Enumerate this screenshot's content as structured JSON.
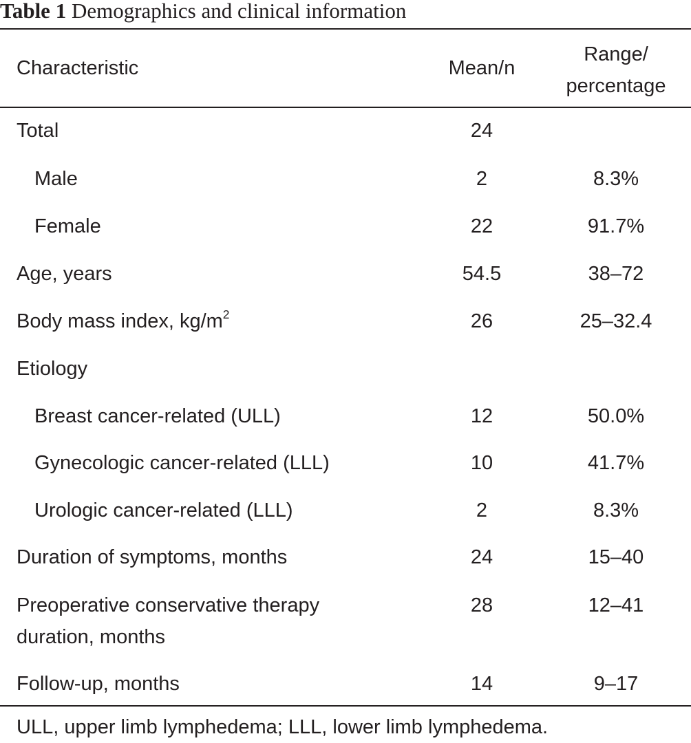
{
  "caption": {
    "label": "Table 1",
    "title": "Demographics and clinical information"
  },
  "headers": {
    "characteristic": "Characteristic",
    "mean": "Mean/n",
    "range_line1": "Range/",
    "range_line2": "percentage"
  },
  "rows": [
    {
      "label": "Total",
      "mean": "24",
      "range": ""
    },
    {
      "label": "Male",
      "mean": "2",
      "range": "8.3%"
    },
    {
      "label": "Female",
      "mean": "22",
      "range": "91.7%"
    },
    {
      "label": "Age, years",
      "mean": "54.5",
      "range": "38–72"
    },
    {
      "label": "Body mass index, kg/m",
      "label_sup": "2",
      "mean": "26",
      "range": "25–32.4"
    },
    {
      "label": "Etiology",
      "mean": "",
      "range": ""
    },
    {
      "label": "Breast cancer-related (ULL)",
      "mean": "12",
      "range": "50.0%"
    },
    {
      "label": "Gynecologic cancer-related (LLL)",
      "mean": "10",
      "range": "41.7%"
    },
    {
      "label": "Urologic cancer-related (LLL)",
      "mean": "2",
      "range": "8.3%"
    },
    {
      "label": "Duration of symptoms, months",
      "mean": "24",
      "range": "15–40"
    },
    {
      "label": "Preoperative conservative therapy",
      "label_line2": "duration, months",
      "mean": "28",
      "range": "12–41"
    },
    {
      "label": "Follow-up, months",
      "mean": "14",
      "range": "9–17"
    }
  ],
  "footnote": "ULL, upper limb lymphedema; LLL, lower limb lymphedema."
}
